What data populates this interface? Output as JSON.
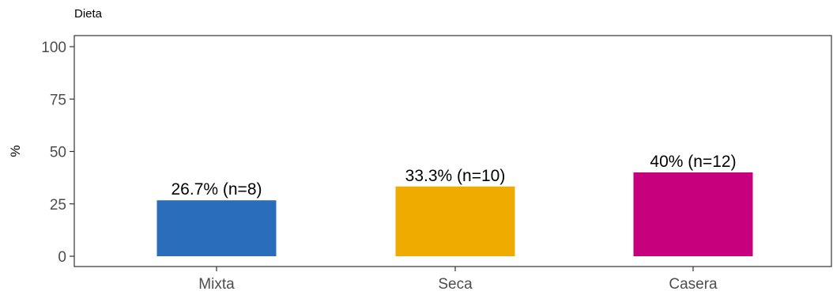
{
  "chart_data": {
    "type": "bar",
    "title": "Dieta",
    "xlabel": "",
    "ylabel": "%",
    "ylim": [
      0,
      100
    ],
    "yticks": [
      0,
      25,
      50,
      75,
      100
    ],
    "categories": [
      "Mixta",
      "Seca",
      "Casera"
    ],
    "values": [
      26.7,
      33.3,
      40
    ],
    "data_labels": [
      "26.7% (n=8)",
      "33.3% (n=10)",
      "40% (n=12)"
    ],
    "colors": [
      "#2a6ebb",
      "#f0ab00",
      "#c7007d"
    ],
    "grid": false,
    "legend": "none"
  }
}
